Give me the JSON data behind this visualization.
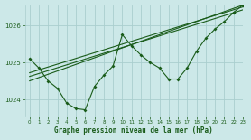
{
  "title": "Graphe pression niveau de la mer (hPa)",
  "bg_color": "#cce8e8",
  "grid_color": "#aacece",
  "line_color": "#1a5c1a",
  "text_color": "#1a5c1a",
  "xlim": [
    -0.5,
    23
  ],
  "ylim": [
    1023.55,
    1026.55
  ],
  "yticks": [
    1024,
    1025,
    1026
  ],
  "xticks": [
    0,
    1,
    2,
    3,
    4,
    5,
    6,
    7,
    8,
    9,
    10,
    11,
    12,
    13,
    14,
    15,
    16,
    17,
    18,
    19,
    20,
    21,
    22,
    23
  ],
  "main_line": [
    [
      0,
      1025.1
    ],
    [
      1,
      1024.85
    ],
    [
      2,
      1024.5
    ],
    [
      3,
      1024.3
    ],
    [
      4,
      1023.9
    ],
    [
      5,
      1023.75
    ],
    [
      6,
      1023.72
    ],
    [
      7,
      1024.35
    ],
    [
      8,
      1024.65
    ],
    [
      9,
      1024.9
    ],
    [
      10,
      1025.75
    ],
    [
      11,
      1025.45
    ],
    [
      12,
      1025.2
    ],
    [
      13,
      1025.0
    ],
    [
      14,
      1024.85
    ],
    [
      15,
      1024.55
    ],
    [
      16,
      1024.55
    ],
    [
      17,
      1024.85
    ],
    [
      18,
      1025.3
    ],
    [
      19,
      1025.65
    ],
    [
      20,
      1025.9
    ],
    [
      21,
      1026.1
    ],
    [
      22,
      1026.35
    ],
    [
      23,
      1026.55
    ]
  ],
  "trend_line1": [
    [
      0,
      1024.72
    ],
    [
      23,
      1026.5
    ]
  ],
  "trend_line2": [
    [
      0,
      1024.62
    ],
    [
      23,
      1026.42
    ]
  ],
  "trend_line3": [
    [
      0,
      1024.5
    ],
    [
      23,
      1026.55
    ]
  ]
}
